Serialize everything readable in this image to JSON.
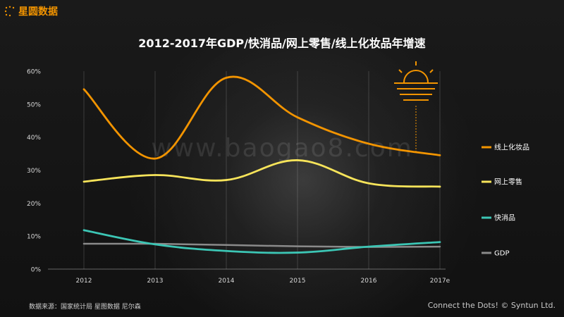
{
  "brand": {
    "name": "星圆数据"
  },
  "watermark": "www.baogao8.com",
  "source_note": "数据来源：国家统计局 星图数据 尼尔森",
  "footer": "Connect the Dots! © Syntun Ltd.",
  "colors": {
    "online_cosmetics": "#f29400",
    "online_retail": "#f7e45a",
    "fmcg": "#3cc6b5",
    "gdp": "#8a8a8a",
    "brand": "#f29400"
  },
  "chart_data": {
    "type": "line",
    "title": "2012-2017年GDP/快消品/网上零售/线上化妆品年增速",
    "categories": [
      "2012",
      "2013",
      "2014",
      "2015",
      "2016",
      "2017e"
    ],
    "ylim": [
      0,
      60
    ],
    "yticks": [
      "0%",
      "10%",
      "20%",
      "30%",
      "40%",
      "50%",
      "60%"
    ],
    "legend_position": "right",
    "series": [
      {
        "name": "线上化妆品",
        "color": "#f29400",
        "values": [
          54.5,
          33.5,
          58,
          46,
          38,
          34.5
        ]
      },
      {
        "name": "网上零售",
        "color": "#f7e45a",
        "values": [
          26.5,
          28.5,
          27,
          33,
          26,
          25
        ]
      },
      {
        "name": "快消品",
        "color": "#3cc6b5",
        "values": [
          11.8,
          7.5,
          5.5,
          5,
          6.8,
          8.2
        ]
      },
      {
        "name": "GDP",
        "color": "#8a8a8a",
        "values": [
          7.7,
          7.7,
          7.3,
          6.9,
          6.7,
          6.8
        ]
      }
    ]
  }
}
